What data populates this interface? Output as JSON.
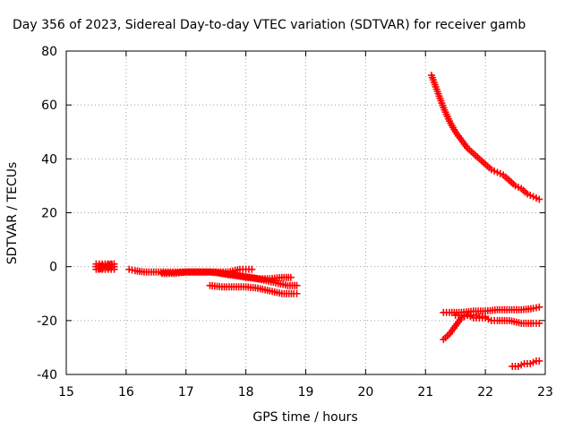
{
  "chart_data": {
    "type": "scatter",
    "title": "Day 356 of 2023, Sidereal Day-to-day VTEC variation (SDTVAR) for receiver gamb",
    "xlabel": "GPS time / hours",
    "ylabel": "SDTVAR / TECUs",
    "xlim": [
      15,
      23
    ],
    "ylim": [
      -40,
      80
    ],
    "xticks": [
      "15",
      "16",
      "17",
      "18",
      "19",
      "20",
      "21",
      "22",
      "23"
    ],
    "yticks": [
      "-40",
      "-20",
      "0",
      "20",
      "40",
      "60",
      "80"
    ],
    "grid": true,
    "legend": "none",
    "marker": "plus",
    "color": "#ff0000",
    "series": [
      {
        "x": [
          15.5,
          15.55,
          15.6,
          15.65,
          15.7,
          15.75,
          15.8,
          15.5,
          15.55,
          15.6,
          15.65,
          15.7,
          15.75,
          15.8,
          15.5,
          15.55,
          15.6,
          15.65,
          15.7,
          15.75,
          15.8
        ],
        "y": [
          1,
          1,
          1,
          1,
          1,
          1,
          1,
          0,
          0,
          0,
          0,
          0,
          0,
          0,
          -1,
          -1,
          -1,
          -1,
          -1,
          -1,
          -1
        ]
      },
      {
        "x": [
          16.05,
          16.15,
          16.3,
          16.5,
          16.7,
          16.9,
          17.1,
          17.3,
          17.5,
          17.7,
          17.9,
          18.0,
          18.1
        ],
        "y": [
          -1,
          -1.5,
          -2,
          -2,
          -2,
          -2,
          -2,
          -2,
          -2,
          -2,
          -1,
          -1,
          -1
        ]
      },
      {
        "x": [
          16.6,
          16.8,
          17.0,
          17.2,
          17.4,
          17.6,
          17.8,
          18.0,
          18.2,
          18.4,
          18.6,
          18.75
        ],
        "y": [
          -2.5,
          -2.5,
          -2,
          -2,
          -2,
          -2.5,
          -3,
          -4,
          -4.5,
          -4.5,
          -4,
          -4
        ]
      },
      {
        "x": [
          17.5,
          17.7,
          17.9,
          18.1,
          18.3,
          18.5,
          18.7,
          18.85
        ],
        "y": [
          -2,
          -3,
          -3.5,
          -4,
          -5,
          -6,
          -7,
          -7
        ]
      },
      {
        "x": [
          17.4,
          17.6,
          17.8,
          18.0,
          18.2,
          18.4,
          18.6,
          18.8,
          18.85
        ],
        "y": [
          -7,
          -7.5,
          -7.5,
          -7.5,
          -8,
          -9,
          -10,
          -10,
          -10
        ]
      },
      {
        "x": [
          21.1,
          21.2,
          21.3,
          21.4,
          21.5,
          21.6,
          21.7,
          21.8,
          21.9,
          22.0,
          22.1,
          22.2,
          22.3,
          22.4,
          22.5,
          22.6,
          22.7,
          22.8,
          22.9
        ],
        "y": [
          71,
          65,
          59,
          54,
          50,
          47,
          44,
          42,
          40,
          38,
          36,
          35,
          34,
          32,
          30,
          29,
          27,
          26,
          25
        ]
      },
      {
        "x": [
          21.3,
          21.4,
          21.6,
          21.8,
          22.0,
          22.2,
          22.4,
          22.6,
          22.8,
          22.9
        ],
        "y": [
          -17,
          -17,
          -17,
          -16.5,
          -16.5,
          -16,
          -16,
          -16,
          -15.5,
          -15
        ]
      },
      {
        "x": [
          21.3,
          21.4,
          21.5,
          21.6,
          21.7,
          21.8,
          21.9,
          22.0,
          22.1,
          22.2,
          22.4,
          22.6,
          22.8,
          22.9
        ],
        "y": [
          -27,
          -25,
          -22,
          -19,
          -18,
          -19,
          -19,
          -19,
          -20,
          -20,
          -20,
          -21,
          -21,
          -21
        ]
      },
      {
        "x": [
          21.5,
          21.6,
          21.7,
          21.8,
          21.9,
          22.0
        ],
        "y": [
          -18,
          -18,
          -18,
          -18,
          -18.5,
          -18.5
        ]
      },
      {
        "x": [
          22.45,
          22.55,
          22.65,
          22.75,
          22.85,
          22.9
        ],
        "y": [
          -37,
          -37,
          -36,
          -36,
          -35,
          -35
        ]
      }
    ]
  }
}
